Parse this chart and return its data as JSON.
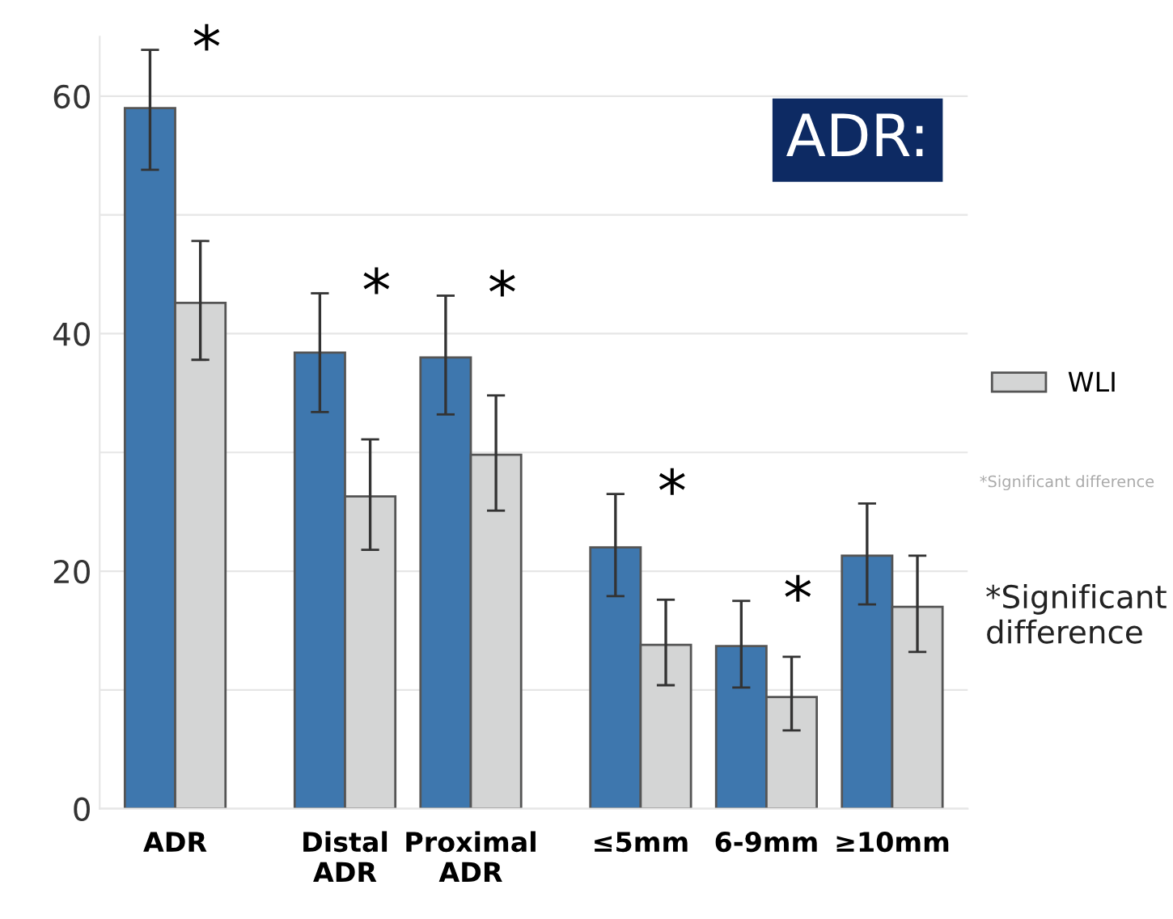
{
  "chart_data": {
    "type": "bar",
    "title": "ADR:",
    "categories": [
      "ADR",
      "Distal\nADR",
      "Proximal\nADR",
      "≤5mm",
      "6-9mm",
      "≥10mm"
    ],
    "series": [
      {
        "color": "#3e77ae",
        "values": [
          59.0,
          38.4,
          38.0,
          22.0,
          13.7,
          21.3
        ],
        "errors": [
          [
            53.8,
            63.9
          ],
          [
            33.4,
            43.4
          ],
          [
            33.2,
            43.2
          ],
          [
            17.9,
            26.5
          ],
          [
            10.2,
            17.5
          ],
          [
            17.2,
            25.7
          ]
        ]
      },
      {
        "name": "WLI",
        "color": "#d4d5d5",
        "values": [
          42.6,
          26.3,
          29.8,
          13.8,
          9.4,
          17.0
        ],
        "errors": [
          [
            37.8,
            47.8
          ],
          [
            21.8,
            31.1
          ],
          [
            25.1,
            34.8
          ],
          [
            10.4,
            17.6
          ],
          [
            6.6,
            12.8
          ],
          [
            13.2,
            21.3
          ]
        ]
      }
    ],
    "ylim": [
      0,
      65
    ],
    "yticks": [
      0,
      {
        "value": 10,
        "label": null
      },
      20,
      {
        "value": 30,
        "label": null
      },
      40,
      {
        "value": 50,
        "label": null
      },
      60
    ],
    "grid": "y",
    "legend": "right",
    "annotations": [
      "*",
      "*",
      "*",
      "*",
      "*",
      "*Significant difference",
      "*Significant\ndifference"
    ]
  }
}
